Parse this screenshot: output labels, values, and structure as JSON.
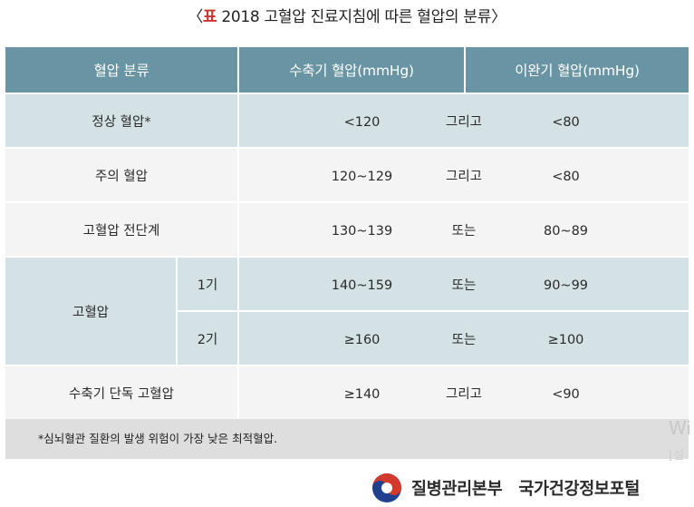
{
  "title": {
    "open": "〈",
    "tag": "표",
    "text": " 2018 고혈압 진료지침에 따른 혈압의 분류",
    "close": "〉"
  },
  "table": {
    "headers": [
      "혈압 분류",
      "수축기 혈압(mmHg)",
      "이완기 혈압(mmHg)"
    ],
    "rows": [
      {
        "category": "정상 혈압*",
        "systolic": "<120",
        "conj": "그리고",
        "diastolic": "<80"
      },
      {
        "category": "주의 혈압",
        "systolic": "120~129",
        "conj": "그리고",
        "diastolic": "<80"
      },
      {
        "category": "고혈압 전단계",
        "systolic": "130~139",
        "conj": "또는",
        "diastolic": "80~89"
      },
      {
        "category": "고혈압",
        "stage": "1기",
        "systolic": "140~159",
        "conj": "또는",
        "diastolic": "90~99"
      },
      {
        "stage": "2기",
        "systolic": "≥160",
        "conj": "또는",
        "diastolic": "≥100"
      },
      {
        "category": "수축기 단독 고혈압",
        "systolic": "≥140",
        "conj": "그리고",
        "diastolic": "<90"
      }
    ]
  },
  "footnote": "*심뇌혈관 질환의 발생 위험이 가장 낮은 최적혈압.",
  "watermark": {
    "line1": "Wi",
    "line2": "[설"
  },
  "footer": {
    "org": "질병관리본부",
    "portal": "국가건강정보포털"
  },
  "colors": {
    "header": "#6894a3",
    "shade": "#d4e2e5",
    "plain": "#f4f4f4",
    "accent": "#d0302a"
  },
  "icons": {
    "logo": "kcdc-taegeuk-logo-icon"
  }
}
